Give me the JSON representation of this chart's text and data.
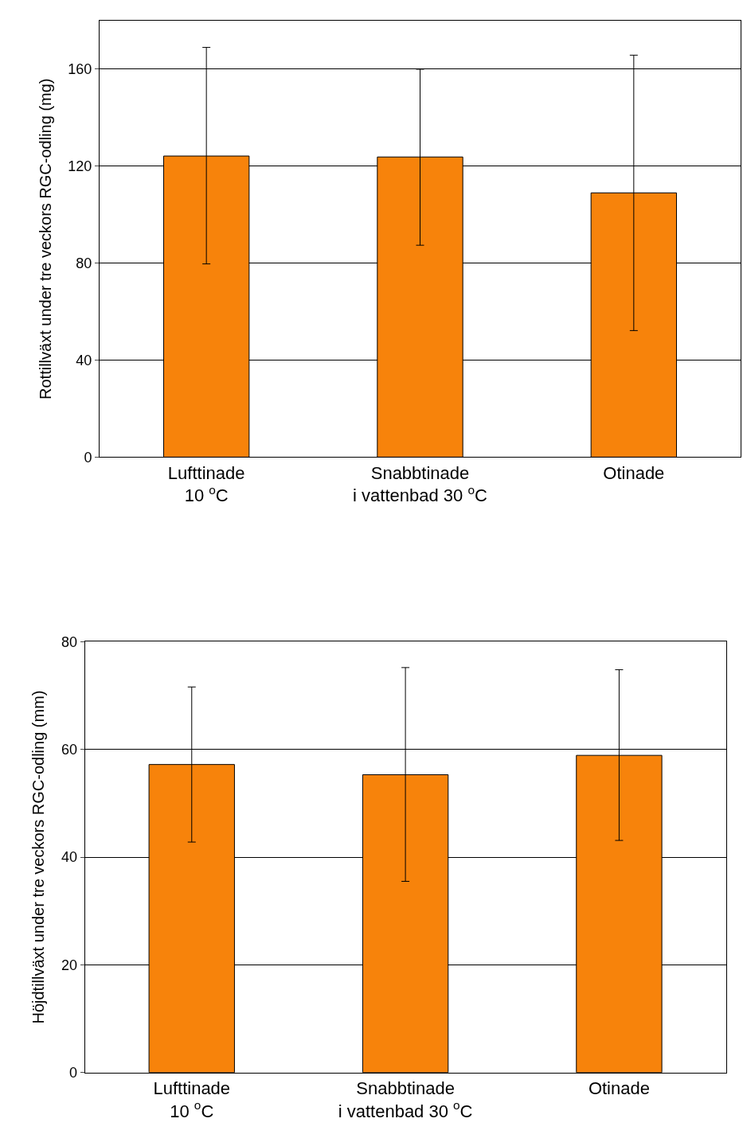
{
  "chart_data": [
    {
      "type": "bar",
      "ylabel": "Rottillväxt under tre veckors RGC-odling (mg)",
      "categories": [
        "Lufttinade\n10 $^{o}$C",
        "Snabbtinade\ni vattenbad 30 $^{o}$C",
        "Otinade"
      ],
      "values": [
        124.2,
        123.8,
        109
      ],
      "errors": [
        [
          79.7,
          169
        ],
        [
          87.4,
          160
        ],
        [
          52.2,
          165.8
        ]
      ],
      "color": "#f7830b",
      "ylim": [
        0,
        180
      ],
      "yticks": [
        0,
        40,
        80,
        120,
        160
      ],
      "grid": "y"
    },
    {
      "type": "bar",
      "ylabel": "Höjdtillväxt under tre veckors RGC-odling (mm)",
      "categories": [
        "Lufttinade\n10 $^{o}$C",
        "Snabbtinade\ni vattenbad 30 $^{o}$C",
        "Otinade"
      ],
      "values": [
        57.2,
        55.3,
        58.9
      ],
      "errors": [
        [
          42.8,
          71.6
        ],
        [
          35.5,
          75.2
        ],
        [
          43.1,
          74.8
        ]
      ],
      "color": "#f7830b",
      "ylim": [
        0,
        80
      ],
      "yticks": [
        0,
        20,
        40,
        60,
        80
      ],
      "grid": "y"
    }
  ]
}
